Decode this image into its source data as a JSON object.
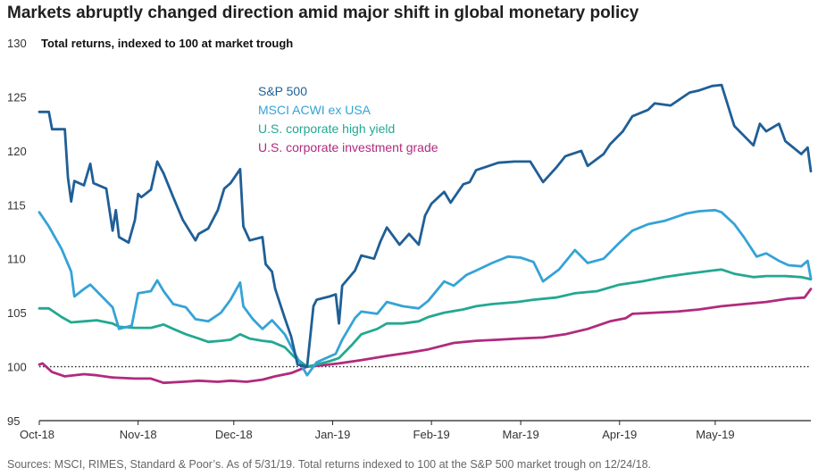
{
  "chart_data": {
    "type": "line",
    "title": "Markets abruptly changed direction amid major shift in global monetary policy",
    "ylabel": "Total returns, indexed to 100 at market trough",
    "ylim": [
      95,
      130
    ],
    "yticks": [
      95,
      100,
      105,
      110,
      115,
      120,
      125,
      130
    ],
    "xlim": [
      "2018-10-01",
      "2019-05-31"
    ],
    "xticks": [
      {
        "date": "2018-10-01",
        "label": "Oct-18"
      },
      {
        "date": "2018-11-01",
        "label": "Nov-18"
      },
      {
        "date": "2018-12-01",
        "label": "Dec-18"
      },
      {
        "date": "2019-01-01",
        "label": "Jan-19"
      },
      {
        "date": "2019-02-01",
        "label": "Feb-19"
      },
      {
        "date": "2019-03-01",
        "label": "Mar-19"
      },
      {
        "date": "2019-04-01",
        "label": "Apr-19"
      },
      {
        "date": "2019-05-01",
        "label": "May-19"
      }
    ],
    "reference_line": {
      "y": 100,
      "style": "dotted"
    },
    "grid": false,
    "legend_position": "upper-left inside plot",
    "series": [
      {
        "name": "S&P 500",
        "color": "#1f5f96",
        "points": [
          [
            "2018-10-01",
            123.6
          ],
          [
            "2018-10-04",
            123.6
          ],
          [
            "2018-10-05",
            122.0
          ],
          [
            "2018-10-09",
            122.0
          ],
          [
            "2018-10-10",
            117.5
          ],
          [
            "2018-10-11",
            115.3
          ],
          [
            "2018-10-12",
            117.2
          ],
          [
            "2018-10-15",
            116.8
          ],
          [
            "2018-10-17",
            118.8
          ],
          [
            "2018-10-18",
            117.0
          ],
          [
            "2018-10-22",
            116.5
          ],
          [
            "2018-10-24",
            112.6
          ],
          [
            "2018-10-25",
            114.5
          ],
          [
            "2018-10-26",
            112.0
          ],
          [
            "2018-10-29",
            111.5
          ],
          [
            "2018-10-31",
            113.6
          ],
          [
            "2018-11-01",
            116.0
          ],
          [
            "2018-11-02",
            115.7
          ],
          [
            "2018-11-05",
            116.4
          ],
          [
            "2018-11-07",
            119.0
          ],
          [
            "2018-11-09",
            117.9
          ],
          [
            "2018-11-12",
            115.7
          ],
          [
            "2018-11-15",
            113.6
          ],
          [
            "2018-11-19",
            111.7
          ],
          [
            "2018-11-20",
            112.3
          ],
          [
            "2018-11-23",
            112.8
          ],
          [
            "2018-11-26",
            114.5
          ],
          [
            "2018-11-28",
            116.5
          ],
          [
            "2018-11-30",
            117.0
          ],
          [
            "2018-12-03",
            118.3
          ],
          [
            "2018-12-04",
            113.0
          ],
          [
            "2018-12-06",
            111.7
          ],
          [
            "2018-12-10",
            112.0
          ],
          [
            "2018-12-11",
            109.5
          ],
          [
            "2018-12-13",
            108.8
          ],
          [
            "2018-12-14",
            107.2
          ],
          [
            "2018-12-17",
            104.5
          ],
          [
            "2018-12-19",
            102.8
          ],
          [
            "2018-12-20",
            101.5
          ],
          [
            "2018-12-21",
            100.2
          ],
          [
            "2018-12-24",
            100.0
          ],
          [
            "2018-12-26",
            105.6
          ],
          [
            "2018-12-27",
            106.2
          ],
          [
            "2018-12-31",
            106.5
          ],
          [
            "2019-01-02",
            106.7
          ],
          [
            "2019-01-03",
            104.0
          ],
          [
            "2019-01-04",
            107.5
          ],
          [
            "2019-01-08",
            108.9
          ],
          [
            "2019-01-10",
            110.3
          ],
          [
            "2019-01-14",
            110.0
          ],
          [
            "2019-01-16",
            111.6
          ],
          [
            "2019-01-18",
            112.9
          ],
          [
            "2019-01-22",
            111.3
          ],
          [
            "2019-01-25",
            112.3
          ],
          [
            "2019-01-28",
            111.3
          ],
          [
            "2019-01-30",
            114.0
          ],
          [
            "2019-02-01",
            115.1
          ],
          [
            "2019-02-05",
            116.2
          ],
          [
            "2019-02-07",
            115.2
          ],
          [
            "2019-02-11",
            116.9
          ],
          [
            "2019-02-13",
            117.1
          ],
          [
            "2019-02-15",
            118.2
          ],
          [
            "2019-02-22",
            118.9
          ],
          [
            "2019-02-27",
            119.0
          ],
          [
            "2019-03-04",
            119.0
          ],
          [
            "2019-03-08",
            117.1
          ],
          [
            "2019-03-12",
            118.4
          ],
          [
            "2019-03-15",
            119.5
          ],
          [
            "2019-03-20",
            120.0
          ],
          [
            "2019-03-22",
            118.6
          ],
          [
            "2019-03-27",
            119.7
          ],
          [
            "2019-03-29",
            120.6
          ],
          [
            "2019-04-02",
            121.8
          ],
          [
            "2019-04-05",
            123.2
          ],
          [
            "2019-04-10",
            123.8
          ],
          [
            "2019-04-12",
            124.4
          ],
          [
            "2019-04-17",
            124.2
          ],
          [
            "2019-04-23",
            125.4
          ],
          [
            "2019-04-26",
            125.6
          ],
          [
            "2019-04-30",
            126.0
          ],
          [
            "2019-05-03",
            126.1
          ],
          [
            "2019-05-07",
            122.3
          ],
          [
            "2019-05-13",
            120.5
          ],
          [
            "2019-05-15",
            122.5
          ],
          [
            "2019-05-17",
            121.8
          ],
          [
            "2019-05-21",
            122.5
          ],
          [
            "2019-05-23",
            120.9
          ],
          [
            "2019-05-28",
            119.7
          ],
          [
            "2019-05-30",
            120.3
          ],
          [
            "2019-05-31",
            118.1
          ]
        ]
      },
      {
        "name": "MSCI ACWI ex USA",
        "color": "#35a3d6",
        "points": [
          [
            "2018-10-01",
            114.3
          ],
          [
            "2018-10-04",
            113.0
          ],
          [
            "2018-10-08",
            110.9
          ],
          [
            "2018-10-11",
            108.8
          ],
          [
            "2018-10-12",
            106.5
          ],
          [
            "2018-10-15",
            107.2
          ],
          [
            "2018-10-17",
            107.6
          ],
          [
            "2018-10-19",
            107.0
          ],
          [
            "2018-10-24",
            105.5
          ],
          [
            "2018-10-26",
            103.5
          ],
          [
            "2018-10-30",
            103.8
          ],
          [
            "2018-11-01",
            106.8
          ],
          [
            "2018-11-05",
            107.0
          ],
          [
            "2018-11-07",
            108.0
          ],
          [
            "2018-11-09",
            107.0
          ],
          [
            "2018-11-12",
            105.8
          ],
          [
            "2018-11-16",
            105.5
          ],
          [
            "2018-11-19",
            104.4
          ],
          [
            "2018-11-23",
            104.2
          ],
          [
            "2018-11-27",
            105.0
          ],
          [
            "2018-11-30",
            106.2
          ],
          [
            "2018-12-03",
            107.8
          ],
          [
            "2018-12-04",
            105.6
          ],
          [
            "2018-12-07",
            104.4
          ],
          [
            "2018-12-10",
            103.5
          ],
          [
            "2018-12-13",
            104.3
          ],
          [
            "2018-12-17",
            103.0
          ],
          [
            "2018-12-20",
            101.3
          ],
          [
            "2018-12-24",
            99.2
          ],
          [
            "2018-12-27",
            100.4
          ],
          [
            "2019-01-02",
            101.2
          ],
          [
            "2019-01-04",
            102.5
          ],
          [
            "2019-01-08",
            104.5
          ],
          [
            "2019-01-10",
            105.1
          ],
          [
            "2019-01-15",
            104.9
          ],
          [
            "2019-01-18",
            106.0
          ],
          [
            "2019-01-23",
            105.6
          ],
          [
            "2019-01-28",
            105.4
          ],
          [
            "2019-01-31",
            106.1
          ],
          [
            "2019-02-05",
            107.9
          ],
          [
            "2019-02-08",
            107.5
          ],
          [
            "2019-02-12",
            108.5
          ],
          [
            "2019-02-15",
            108.9
          ],
          [
            "2019-02-20",
            109.6
          ],
          [
            "2019-02-25",
            110.2
          ],
          [
            "2019-03-01",
            110.1
          ],
          [
            "2019-03-05",
            109.7
          ],
          [
            "2019-03-08",
            107.9
          ],
          [
            "2019-03-13",
            109.0
          ],
          [
            "2019-03-18",
            110.8
          ],
          [
            "2019-03-22",
            109.6
          ],
          [
            "2019-03-27",
            110.0
          ],
          [
            "2019-04-01",
            111.5
          ],
          [
            "2019-04-05",
            112.6
          ],
          [
            "2019-04-10",
            113.2
          ],
          [
            "2019-04-15",
            113.5
          ],
          [
            "2019-04-22",
            114.2
          ],
          [
            "2019-04-26",
            114.4
          ],
          [
            "2019-05-01",
            114.5
          ],
          [
            "2019-05-03",
            114.3
          ],
          [
            "2019-05-07",
            113.2
          ],
          [
            "2019-05-10",
            112.0
          ],
          [
            "2019-05-14",
            110.2
          ],
          [
            "2019-05-17",
            110.5
          ],
          [
            "2019-05-21",
            109.8
          ],
          [
            "2019-05-24",
            109.4
          ],
          [
            "2019-05-28",
            109.3
          ],
          [
            "2019-05-30",
            109.8
          ],
          [
            "2019-05-31",
            108.2
          ]
        ]
      },
      {
        "name": "U.S. corporate high yield",
        "color": "#23a892",
        "points": [
          [
            "2018-10-01",
            105.4
          ],
          [
            "2018-10-04",
            105.4
          ],
          [
            "2018-10-08",
            104.6
          ],
          [
            "2018-10-11",
            104.1
          ],
          [
            "2018-10-15",
            104.2
          ],
          [
            "2018-10-19",
            104.3
          ],
          [
            "2018-10-24",
            104.0
          ],
          [
            "2018-10-26",
            103.7
          ],
          [
            "2018-10-31",
            103.6
          ],
          [
            "2018-11-05",
            103.6
          ],
          [
            "2018-11-09",
            103.9
          ],
          [
            "2018-11-12",
            103.5
          ],
          [
            "2018-11-16",
            103.0
          ],
          [
            "2018-11-20",
            102.6
          ],
          [
            "2018-11-23",
            102.3
          ],
          [
            "2018-11-27",
            102.4
          ],
          [
            "2018-11-30",
            102.5
          ],
          [
            "2018-12-03",
            103.0
          ],
          [
            "2018-12-06",
            102.6
          ],
          [
            "2018-12-10",
            102.4
          ],
          [
            "2018-12-13",
            102.3
          ],
          [
            "2018-12-17",
            101.8
          ],
          [
            "2018-12-20",
            100.9
          ],
          [
            "2018-12-24",
            100.0
          ],
          [
            "2018-12-27",
            100.2
          ],
          [
            "2018-12-31",
            100.5
          ],
          [
            "2019-01-03",
            100.8
          ],
          [
            "2019-01-07",
            102.0
          ],
          [
            "2019-01-10",
            103.0
          ],
          [
            "2019-01-15",
            103.5
          ],
          [
            "2019-01-18",
            104.0
          ],
          [
            "2019-01-23",
            104.0
          ],
          [
            "2019-01-28",
            104.2
          ],
          [
            "2019-01-31",
            104.6
          ],
          [
            "2019-02-05",
            105.0
          ],
          [
            "2019-02-11",
            105.3
          ],
          [
            "2019-02-15",
            105.6
          ],
          [
            "2019-02-20",
            105.8
          ],
          [
            "2019-02-28",
            106.0
          ],
          [
            "2019-03-05",
            106.2
          ],
          [
            "2019-03-12",
            106.4
          ],
          [
            "2019-03-18",
            106.8
          ],
          [
            "2019-03-25",
            107.0
          ],
          [
            "2019-04-01",
            107.6
          ],
          [
            "2019-04-08",
            107.9
          ],
          [
            "2019-04-15",
            108.3
          ],
          [
            "2019-04-22",
            108.6
          ],
          [
            "2019-04-30",
            108.9
          ],
          [
            "2019-05-03",
            109.0
          ],
          [
            "2019-05-07",
            108.6
          ],
          [
            "2019-05-13",
            108.3
          ],
          [
            "2019-05-17",
            108.4
          ],
          [
            "2019-05-23",
            108.4
          ],
          [
            "2019-05-28",
            108.3
          ],
          [
            "2019-05-31",
            108.1
          ]
        ]
      },
      {
        "name": "U.S. corporate investment grade",
        "color": "#b12a7e",
        "points": [
          [
            "2018-10-01",
            100.2
          ],
          [
            "2018-10-02",
            100.3
          ],
          [
            "2018-10-05",
            99.5
          ],
          [
            "2018-10-09",
            99.1
          ],
          [
            "2018-10-15",
            99.3
          ],
          [
            "2018-10-19",
            99.2
          ],
          [
            "2018-10-24",
            99.0
          ],
          [
            "2018-10-31",
            98.9
          ],
          [
            "2018-11-05",
            98.9
          ],
          [
            "2018-11-09",
            98.5
          ],
          [
            "2018-11-15",
            98.6
          ],
          [
            "2018-11-20",
            98.7
          ],
          [
            "2018-11-26",
            98.6
          ],
          [
            "2018-11-30",
            98.7
          ],
          [
            "2018-12-05",
            98.6
          ],
          [
            "2018-12-10",
            98.8
          ],
          [
            "2018-12-14",
            99.1
          ],
          [
            "2018-12-19",
            99.4
          ],
          [
            "2018-12-24",
            100.0
          ],
          [
            "2018-12-28",
            100.1
          ],
          [
            "2019-01-03",
            100.3
          ],
          [
            "2019-01-10",
            100.6
          ],
          [
            "2019-01-18",
            101.0
          ],
          [
            "2019-01-25",
            101.3
          ],
          [
            "2019-01-31",
            101.6
          ],
          [
            "2019-02-08",
            102.2
          ],
          [
            "2019-02-15",
            102.4
          ],
          [
            "2019-02-22",
            102.5
          ],
          [
            "2019-02-28",
            102.6
          ],
          [
            "2019-03-08",
            102.7
          ],
          [
            "2019-03-15",
            103.0
          ],
          [
            "2019-03-22",
            103.5
          ],
          [
            "2019-03-29",
            104.2
          ],
          [
            "2019-04-03",
            104.5
          ],
          [
            "2019-04-05",
            104.9
          ],
          [
            "2019-04-12",
            105.0
          ],
          [
            "2019-04-19",
            105.1
          ],
          [
            "2019-04-26",
            105.3
          ],
          [
            "2019-05-03",
            105.6
          ],
          [
            "2019-05-10",
            105.8
          ],
          [
            "2019-05-17",
            106.0
          ],
          [
            "2019-05-24",
            106.3
          ],
          [
            "2019-05-29",
            106.4
          ],
          [
            "2019-05-31",
            107.2
          ]
        ]
      }
    ]
  },
  "source_note": "Sources: MSCI, RIMES, Standard & Poor’s. As of 5/31/19. Total returns indexed to 100 at the S&P 500 market trough on 12/24/18."
}
